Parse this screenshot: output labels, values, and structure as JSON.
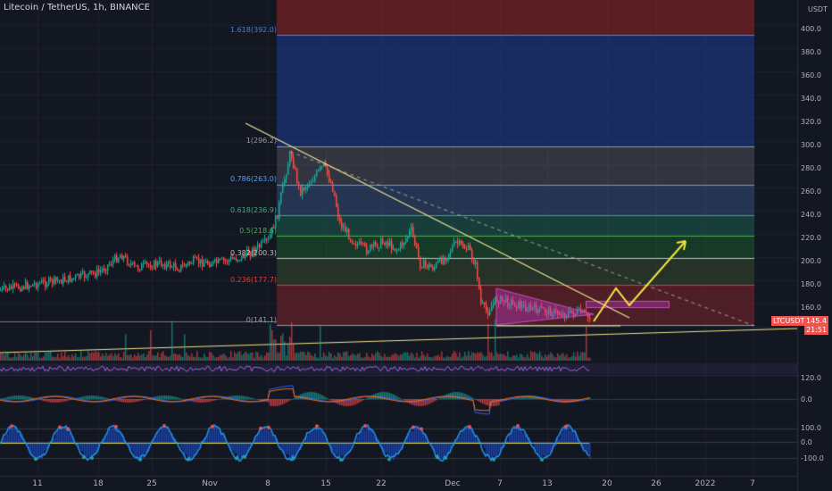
{
  "header": {
    "title": "Litecoin / TetherUS, 1h, BINANCE"
  },
  "price_axis": {
    "unit_top": "USDT",
    "unit_bottom": "USDT",
    "ticks": [
      "400.0",
      "380.0",
      "360.0",
      "340.0",
      "320.0",
      "300.0",
      "280.0",
      "260.0",
      "240.0",
      "220.0",
      "200.0",
      "180.0",
      "160.0",
      "120.0"
    ]
  },
  "indicator_ticks": {
    "macd": "0.0",
    "osc_top": "100.0",
    "osc_mid": "0.0",
    "osc_bottom": "-100.0"
  },
  "fib_levels": [
    {
      "label": "1.618(392.0)",
      "color": "#4a7fd6"
    },
    {
      "label": "1(296.2)",
      "color": "#9598a1"
    },
    {
      "label": "0.786(263.0)",
      "color": "#5b9cf6"
    },
    {
      "label": "0.618(236.9)",
      "color": "#3fa77a"
    },
    {
      "label": "0.5(218.6)",
      "color": "#4caf50"
    },
    {
      "label": "0.382(200.3)",
      "color": "#c0c0c0"
    },
    {
      "label": "0.236(177.7)",
      "color": "#e53935"
    },
    {
      "label": "0(141.1)",
      "color": "#9598a1"
    }
  ],
  "price_tags": {
    "symbol": "LTCUSDT",
    "last": "145.4",
    "countdown": "21:51"
  },
  "x_axis": [
    "11",
    "18",
    "25",
    "Nov",
    "8",
    "15",
    "22",
    "Dec",
    "7",
    "13",
    "20",
    "26",
    "2022",
    "7"
  ],
  "colors": {
    "background": "#131722",
    "up": "#26a69a",
    "down": "#ef5350",
    "trend": "#f0e68c"
  }
}
